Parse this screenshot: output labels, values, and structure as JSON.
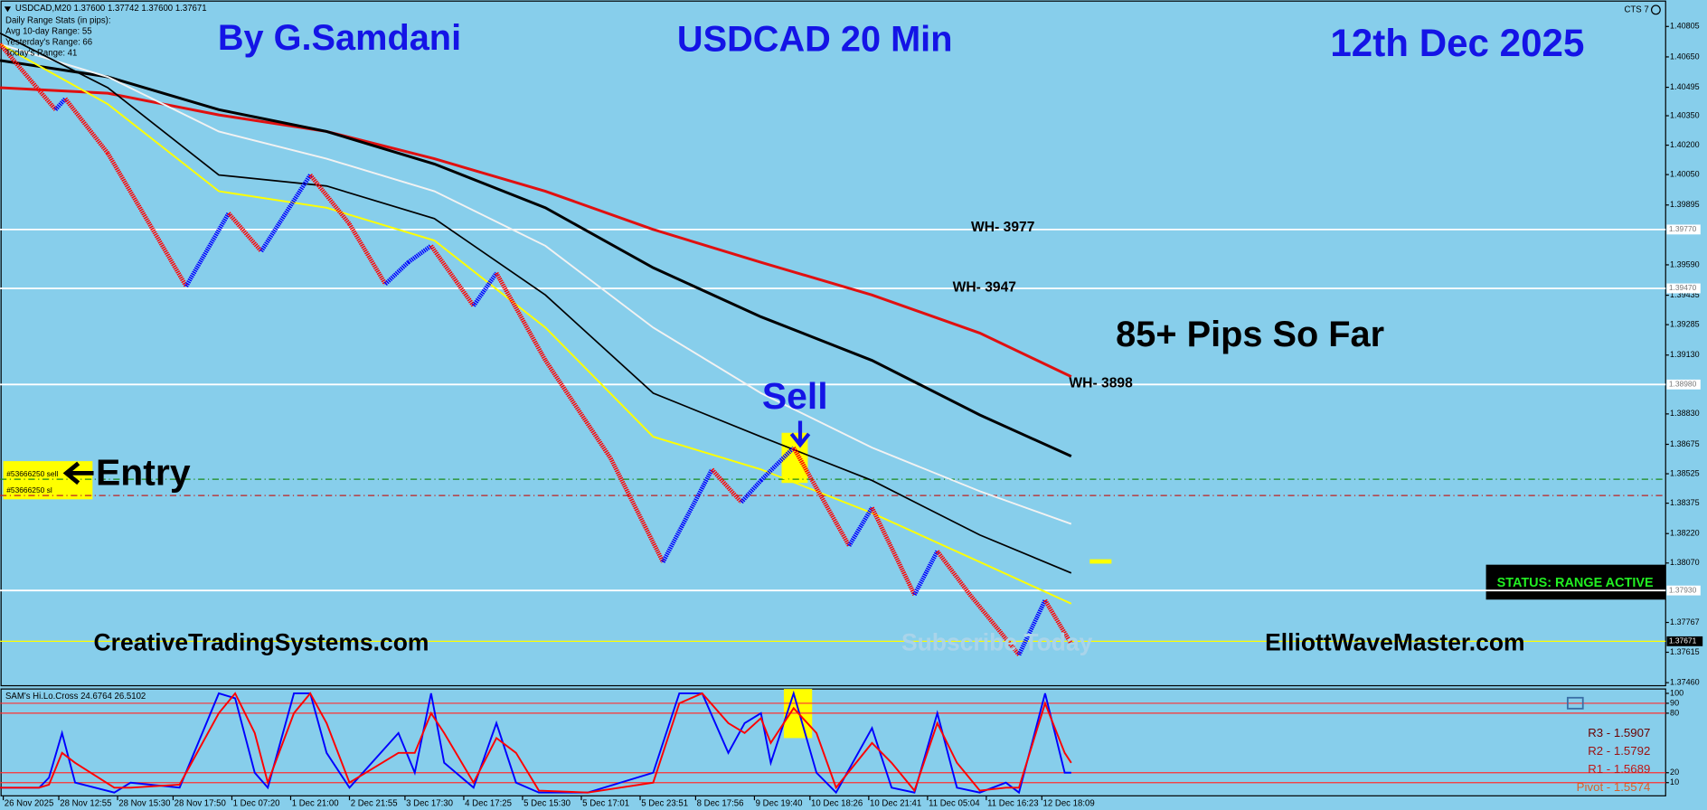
{
  "chart_data": [
    {
      "type": "line",
      "title": "USDCAD 20 Min",
      "author": "By G.Samdani",
      "date": "12th Dec 2025",
      "symbol_info": "USDCAD,M20  1.37600 1.37742 1.37600 1.37671",
      "stats": [
        "Daily Range Stats (in pips):",
        "Avg 10-day Range: 55",
        "Yesterday's Range: 66",
        "Today's Range: 41"
      ],
      "platform": "CTS 7",
      "annotations": [
        "85+ Pips So Far",
        "Sell",
        "Entry",
        "CreativeTradingSystems.com",
        "ElliottWaveMaster.com",
        "Subscribe Today"
      ],
      "status": "STATUS: RANGE ACTIVE",
      "orders": [
        {
          "label": "#53666250 sell",
          "value": 1.38497,
          "color": "#1a8a1a"
        },
        {
          "label": "#53666250 sl",
          "value": 1.38414,
          "color": "#c02020"
        }
      ],
      "levels": [
        {
          "value": 1.3977,
          "label": "1.39770",
          "note": "WH- 3977"
        },
        {
          "value": 1.3947,
          "label": "1.39470",
          "note": "WH- 3947"
        },
        {
          "value": 1.3898,
          "label": "1.38980",
          "note": "WH- 3898"
        },
        {
          "value": 1.3793,
          "label": "1.37930"
        }
      ],
      "current": {
        "value": 1.37671,
        "label": "1.37671",
        "color": "#ffff00"
      },
      "xlim": [
        0,
        510
      ],
      "xticks": [
        {
          "value": 1,
          "label": "26 Nov 2025"
        },
        {
          "value": 18,
          "label": "28 Nov 12:55"
        },
        {
          "value": 36,
          "label": "28 Nov 15:30"
        },
        {
          "value": 53,
          "label": "28 Nov 17:50"
        },
        {
          "value": 71,
          "label": "1 Dec 07:20"
        },
        {
          "value": 89,
          "label": "1 Dec 21:00"
        },
        {
          "value": 107,
          "label": "2 Dec 21:55"
        },
        {
          "value": 124,
          "label": "3 Dec 17:30"
        },
        {
          "value": 142,
          "label": "4 Dec 17:25"
        },
        {
          "value": 160,
          "label": "5 Dec 15:30"
        },
        {
          "value": 178,
          "label": "5 Dec 17:01"
        },
        {
          "value": 196,
          "label": "5 Dec 23:51"
        },
        {
          "value": 213,
          "label": "8 Dec 17:56"
        },
        {
          "value": 231,
          "label": "9 Dec 19:40"
        },
        {
          "value": 248,
          "label": "10 Dec 18:26"
        },
        {
          "value": 266,
          "label": "10 Dec 21:41"
        },
        {
          "value": 284,
          "label": "11 Dec 05:04"
        },
        {
          "value": 302,
          "label": "11 Dec 16:23"
        },
        {
          "value": 319,
          "label": "12 Dec 18:09"
        }
      ],
      "ylim": [
        1.3745,
        1.4094
      ],
      "yticks": [
        1.40805,
        {
          "value": 1.4065,
          "label": "1.40650"
        },
        1.40495,
        {
          "value": 1.4035,
          "label": "1.40350"
        },
        {
          "value": 1.402,
          "label": "1.40200"
        },
        {
          "value": 1.4005,
          "label": "1.40050"
        },
        1.39895,
        {
          "value": 1.3959,
          "label": "1.39590"
        },
        1.39435,
        1.39285,
        {
          "value": 1.3913,
          "label": "1.39130"
        },
        {
          "value": 1.3883,
          "label": "1.38830"
        },
        1.38675,
        1.38525,
        1.38375,
        {
          "value": 1.3822,
          "label": "1.38220"
        },
        {
          "value": 1.3807,
          "label": "1.38070"
        },
        1.37767,
        1.37615,
        {
          "value": 1.3746,
          "label": "1.37460"
        }
      ],
      "series": [
        {
          "up_color": "#0000ff",
          "down_color": "#ff0000",
          "x": [
            0,
            17,
            20,
            33,
            57,
            70,
            80,
            95,
            107,
            118,
            125,
            132,
            145,
            152,
            167,
            187,
            203,
            218,
            227,
            233,
            243,
            260,
            267,
            280,
            287,
            297,
            312,
            320,
            328
          ],
          "values": [
            1.40715,
            1.40381,
            1.40437,
            1.40159,
            1.39481,
            1.39853,
            1.39659,
            1.40048,
            1.39798,
            1.39492,
            1.39603,
            1.39687,
            1.39381,
            1.39548,
            1.39103,
            1.38603,
            1.38075,
            1.38547,
            1.3838,
            1.38491,
            1.38658,
            1.38158,
            1.38352,
            1.37908,
            1.3813,
            1.37908,
            1.37602,
            1.3788,
            1.37658
          ]
        },
        {
          "color": "#e01010",
          "x": [
            0,
            33,
            67,
            100,
            133,
            167,
            200,
            233,
            267,
            300,
            328
          ],
          "values": [
            1.40493,
            1.40465,
            1.40354,
            1.4027,
            1.40131,
            1.39965,
            1.3977,
            1.39603,
            1.39436,
            1.39242,
            1.3902
          ]
        },
        {
          "color": "#000000",
          "x": [
            0,
            33,
            67,
            100,
            133,
            167,
            200,
            233,
            267,
            300,
            328
          ],
          "values": [
            1.40632,
            1.40548,
            1.40381,
            1.4027,
            1.40104,
            1.39881,
            1.39575,
            1.39325,
            1.39103,
            1.38825,
            1.38614
          ]
        },
        {
          "color": "#f2f2f2",
          "x": [
            0,
            33,
            67,
            100,
            133,
            167,
            200,
            233,
            267,
            300,
            328
          ],
          "values": [
            1.40715,
            1.40548,
            1.4027,
            1.40131,
            1.39965,
            1.39687,
            1.3927,
            1.38936,
            1.38658,
            1.38436,
            1.38269
          ]
        },
        {
          "color": "#ffff00",
          "x": [
            0,
            33,
            67,
            100,
            133,
            167,
            200,
            233,
            267,
            300,
            328
          ],
          "values": [
            1.40715,
            1.40409,
            1.39965,
            1.39881,
            1.39714,
            1.3927,
            1.38714,
            1.38547,
            1.38325,
            1.38075,
            1.37863
          ]
        },
        {
          "color": "#000000",
          "x": [
            0,
            33,
            67,
            100,
            133,
            167,
            200,
            233,
            267,
            300,
            328
          ],
          "values": [
            1.40771,
            1.40493,
            1.40048,
            1.39992,
            1.39826,
            1.39436,
            1.38936,
            1.38714,
            1.38491,
            1.38213,
            1.38019
          ]
        }
      ]
    },
    {
      "type": "line",
      "title": "SAM's Hi.Lo.Cross 24.6764 26.5102",
      "xlim": [
        0,
        510
      ],
      "ylim": [
        0,
        100
      ],
      "yticks": [
        10,
        20,
        80,
        90,
        100
      ],
      "levels": [
        10,
        20,
        80,
        90
      ],
      "pivots": [
        "R3 - 1.5907",
        "R2 - 1.5792",
        "R1 - 1.5689",
        "Pivot - 1.5574"
      ],
      "series": [
        {
          "color": "#0000ff",
          "x": [
            0,
            12,
            15,
            19,
            23,
            35,
            40,
            55,
            67,
            72,
            78,
            82,
            90,
            95,
            100,
            107,
            122,
            127,
            132,
            136,
            145,
            152,
            158,
            165,
            180,
            200,
            208,
            215,
            223,
            228,
            233,
            236,
            243,
            250,
            256,
            267,
            273,
            280,
            287,
            293,
            300,
            308,
            312,
            320,
            326,
            328
          ],
          "values": [
            5,
            5,
            15,
            60,
            10,
            0,
            10,
            5,
            100,
            95,
            20,
            5,
            100,
            100,
            40,
            5,
            60,
            20,
            100,
            30,
            5,
            70,
            10,
            0,
            0,
            20,
            100,
            100,
            40,
            70,
            80,
            30,
            100,
            20,
            0,
            65,
            5,
            0,
            80,
            5,
            0,
            10,
            0,
            100,
            20,
            20
          ]
        },
        {
          "color": "#ff0000",
          "x": [
            0,
            12,
            15,
            19,
            23,
            35,
            40,
            55,
            67,
            72,
            78,
            82,
            90,
            95,
            100,
            107,
            122,
            127,
            132,
            136,
            145,
            152,
            158,
            165,
            180,
            200,
            208,
            215,
            223,
            228,
            233,
            236,
            243,
            250,
            256,
            267,
            273,
            280,
            287,
            293,
            300,
            308,
            312,
            320,
            326,
            328
          ],
          "values": [
            5,
            5,
            8,
            40,
            30,
            5,
            5,
            8,
            80,
            100,
            60,
            10,
            80,
            100,
            70,
            10,
            40,
            40,
            80,
            60,
            10,
            55,
            40,
            2,
            0,
            10,
            90,
            100,
            70,
            60,
            75,
            50,
            85,
            60,
            5,
            50,
            30,
            2,
            70,
            30,
            2,
            5,
            5,
            90,
            40,
            30
          ]
        }
      ]
    }
  ]
}
